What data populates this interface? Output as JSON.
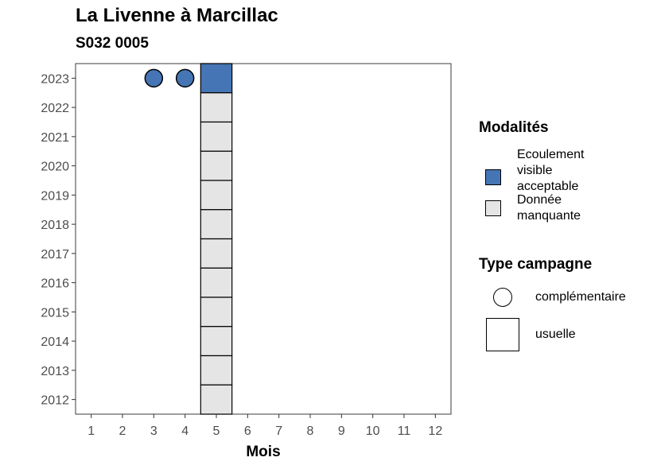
{
  "chart_data": {
    "type": "heatmap",
    "title": "La Livenne à Marcillac",
    "subtitle": "S032 0005",
    "xlabel": "Mois",
    "ylabel": "",
    "x_ticks": [
      "1",
      "2",
      "3",
      "4",
      "5",
      "6",
      "7",
      "8",
      "9",
      "10",
      "11",
      "12"
    ],
    "y_ticks": [
      "2012",
      "2013",
      "2014",
      "2015",
      "2016",
      "2017",
      "2018",
      "2019",
      "2020",
      "2021",
      "2022",
      "2023"
    ],
    "xlim": [
      0.5,
      12.5
    ],
    "ylim": [
      2011.5,
      2023.5
    ],
    "grid": false,
    "legend_position": "right",
    "cells": [
      {
        "month": 5,
        "year": 2023,
        "modalite": "Ecoulement visible acceptable",
        "campagne": "usuelle"
      },
      {
        "month": 5,
        "year": 2022,
        "modalite": "Donnée manquante",
        "campagne": "usuelle"
      },
      {
        "month": 5,
        "year": 2021,
        "modalite": "Donnée manquante",
        "campagne": "usuelle"
      },
      {
        "month": 5,
        "year": 2020,
        "modalite": "Donnée manquante",
        "campagne": "usuelle"
      },
      {
        "month": 5,
        "year": 2019,
        "modalite": "Donnée manquante",
        "campagne": "usuelle"
      },
      {
        "month": 5,
        "year": 2018,
        "modalite": "Donnée manquante",
        "campagne": "usuelle"
      },
      {
        "month": 5,
        "year": 2017,
        "modalite": "Donnée manquante",
        "campagne": "usuelle"
      },
      {
        "month": 5,
        "year": 2016,
        "modalite": "Donnée manquante",
        "campagne": "usuelle"
      },
      {
        "month": 5,
        "year": 2015,
        "modalite": "Donnée manquante",
        "campagne": "usuelle"
      },
      {
        "month": 5,
        "year": 2014,
        "modalite": "Donnée manquante",
        "campagne": "usuelle"
      },
      {
        "month": 5,
        "year": 2013,
        "modalite": "Donnée manquante",
        "campagne": "usuelle"
      },
      {
        "month": 5,
        "year": 2012,
        "modalite": "Donnée manquante",
        "campagne": "usuelle"
      }
    ],
    "points": [
      {
        "month": 3,
        "year": 2023,
        "modalite": "Ecoulement visible acceptable",
        "campagne": "complémentaire"
      },
      {
        "month": 4,
        "year": 2023,
        "modalite": "Ecoulement visible acceptable",
        "campagne": "complémentaire"
      }
    ],
    "colors": {
      "Ecoulement visible acceptable": "#4575b4",
      "Donnée manquante": "#e5e5e5"
    }
  },
  "legend": {
    "modalites_title": "Modalités",
    "modalites": [
      {
        "lines": [
          "Ecoulement",
          "visible",
          "acceptable"
        ],
        "color": "#4575b4"
      },
      {
        "lines": [
          "Donnée",
          "manquante"
        ],
        "color": "#e5e5e5"
      }
    ],
    "campagne_title": "Type campagne",
    "campagne": [
      {
        "label": "complémentaire",
        "shape": "circle"
      },
      {
        "label": "usuelle",
        "shape": "square"
      }
    ]
  }
}
